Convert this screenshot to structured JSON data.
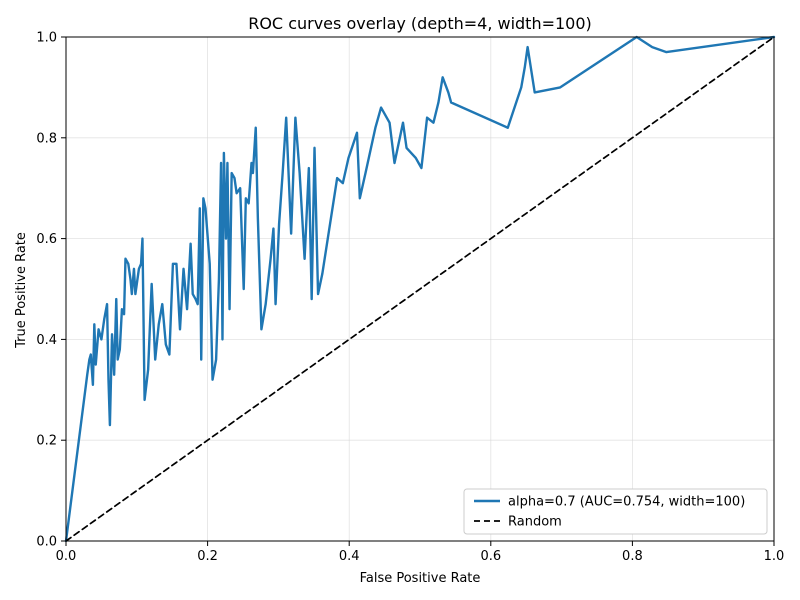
{
  "chart_data": {
    "type": "line",
    "title": "ROC curves overlay (depth=4, width=100)",
    "xlabel": "False Positive Rate",
    "ylabel": "True Positive Rate",
    "xlim": [
      0,
      1
    ],
    "ylim": [
      0,
      1
    ],
    "grid": true,
    "legend_position": "lower-right",
    "x_ticks": [
      {
        "value": 0.0,
        "label": "0.0"
      },
      {
        "value": 0.2,
        "label": "0.2"
      },
      {
        "value": 0.4,
        "label": "0.4"
      },
      {
        "value": 0.6,
        "label": "0.6"
      },
      {
        "value": 0.8,
        "label": "0.8"
      },
      {
        "value": 1.0,
        "label": "1.0"
      }
    ],
    "y_ticks": [
      {
        "value": 0.0,
        "label": "0.0"
      },
      {
        "value": 0.2,
        "label": "0.2"
      },
      {
        "value": 0.4,
        "label": "0.4"
      },
      {
        "value": 0.6,
        "label": "0.6"
      },
      {
        "value": 0.8,
        "label": "0.8"
      },
      {
        "value": 1.0,
        "label": "1.0"
      }
    ],
    "series": [
      {
        "name": "alpha=0.7 (AUC=0.754, width=100)",
        "color": "#1f77b4",
        "line_style": "solid",
        "points": [
          [
            0.0,
            0.0
          ],
          [
            0.03,
            0.33
          ],
          [
            0.033,
            0.36
          ],
          [
            0.035,
            0.37
          ],
          [
            0.038,
            0.31
          ],
          [
            0.04,
            0.43
          ],
          [
            0.042,
            0.35
          ],
          [
            0.046,
            0.42
          ],
          [
            0.05,
            0.4
          ],
          [
            0.054,
            0.44
          ],
          [
            0.058,
            0.47
          ],
          [
            0.06,
            0.32
          ],
          [
            0.062,
            0.23
          ],
          [
            0.065,
            0.41
          ],
          [
            0.068,
            0.33
          ],
          [
            0.071,
            0.48
          ],
          [
            0.073,
            0.36
          ],
          [
            0.076,
            0.38
          ],
          [
            0.079,
            0.46
          ],
          [
            0.082,
            0.45
          ],
          [
            0.084,
            0.56
          ],
          [
            0.088,
            0.55
          ],
          [
            0.091,
            0.52
          ],
          [
            0.093,
            0.49
          ],
          [
            0.096,
            0.54
          ],
          [
            0.098,
            0.49
          ],
          [
            0.1,
            0.51
          ],
          [
            0.103,
            0.54
          ],
          [
            0.106,
            0.55
          ],
          [
            0.108,
            0.6
          ],
          [
            0.111,
            0.28
          ],
          [
            0.116,
            0.34
          ],
          [
            0.121,
            0.51
          ],
          [
            0.126,
            0.36
          ],
          [
            0.131,
            0.43
          ],
          [
            0.136,
            0.47
          ],
          [
            0.141,
            0.39
          ],
          [
            0.146,
            0.37
          ],
          [
            0.151,
            0.55
          ],
          [
            0.156,
            0.55
          ],
          [
            0.161,
            0.42
          ],
          [
            0.166,
            0.54
          ],
          [
            0.171,
            0.46
          ],
          [
            0.176,
            0.59
          ],
          [
            0.179,
            0.49
          ],
          [
            0.183,
            0.48
          ],
          [
            0.186,
            0.47
          ],
          [
            0.189,
            0.66
          ],
          [
            0.191,
            0.36
          ],
          [
            0.194,
            0.68
          ],
          [
            0.197,
            0.66
          ],
          [
            0.203,
            0.55
          ],
          [
            0.207,
            0.32
          ],
          [
            0.212,
            0.36
          ],
          [
            0.216,
            0.52
          ],
          [
            0.219,
            0.75
          ],
          [
            0.221,
            0.4
          ],
          [
            0.223,
            0.77
          ],
          [
            0.226,
            0.6
          ],
          [
            0.228,
            0.75
          ],
          [
            0.231,
            0.46
          ],
          [
            0.234,
            0.73
          ],
          [
            0.238,
            0.72
          ],
          [
            0.241,
            0.69
          ],
          [
            0.246,
            0.7
          ],
          [
            0.251,
            0.5
          ],
          [
            0.254,
            0.68
          ],
          [
            0.258,
            0.67
          ],
          [
            0.262,
            0.75
          ],
          [
            0.264,
            0.73
          ],
          [
            0.268,
            0.82
          ],
          [
            0.271,
            0.64
          ],
          [
            0.276,
            0.42
          ],
          [
            0.282,
            0.47
          ],
          [
            0.289,
            0.56
          ],
          [
            0.293,
            0.62
          ],
          [
            0.296,
            0.47
          ],
          [
            0.301,
            0.63
          ],
          [
            0.306,
            0.73
          ],
          [
            0.311,
            0.84
          ],
          [
            0.318,
            0.61
          ],
          [
            0.324,
            0.84
          ],
          [
            0.33,
            0.73
          ],
          [
            0.337,
            0.56
          ],
          [
            0.343,
            0.74
          ],
          [
            0.347,
            0.48
          ],
          [
            0.351,
            0.78
          ],
          [
            0.356,
            0.49
          ],
          [
            0.362,
            0.53
          ],
          [
            0.383,
            0.72
          ],
          [
            0.391,
            0.71
          ],
          [
            0.399,
            0.76
          ],
          [
            0.411,
            0.81
          ],
          [
            0.415,
            0.68
          ],
          [
            0.423,
            0.73
          ],
          [
            0.437,
            0.82
          ],
          [
            0.445,
            0.86
          ],
          [
            0.457,
            0.83
          ],
          [
            0.464,
            0.75
          ],
          [
            0.476,
            0.83
          ],
          [
            0.481,
            0.78
          ],
          [
            0.494,
            0.76
          ],
          [
            0.498,
            0.75
          ],
          [
            0.502,
            0.74
          ],
          [
            0.51,
            0.84
          ],
          [
            0.519,
            0.83
          ],
          [
            0.526,
            0.87
          ],
          [
            0.532,
            0.92
          ],
          [
            0.54,
            0.89
          ],
          [
            0.544,
            0.87
          ],
          [
            0.624,
            0.82
          ],
          [
            0.643,
            0.9
          ],
          [
            0.648,
            0.94
          ],
          [
            0.652,
            0.98
          ],
          [
            0.662,
            0.89
          ],
          [
            0.698,
            0.9
          ],
          [
            0.806,
            1.0
          ],
          [
            0.828,
            0.98
          ],
          [
            0.848,
            0.97
          ],
          [
            1.0,
            1.0
          ]
        ]
      },
      {
        "name": "Random",
        "color": "#000000",
        "line_style": "dashed",
        "points": [
          [
            0.0,
            0.0
          ],
          [
            1.0,
            1.0
          ]
        ]
      }
    ]
  }
}
